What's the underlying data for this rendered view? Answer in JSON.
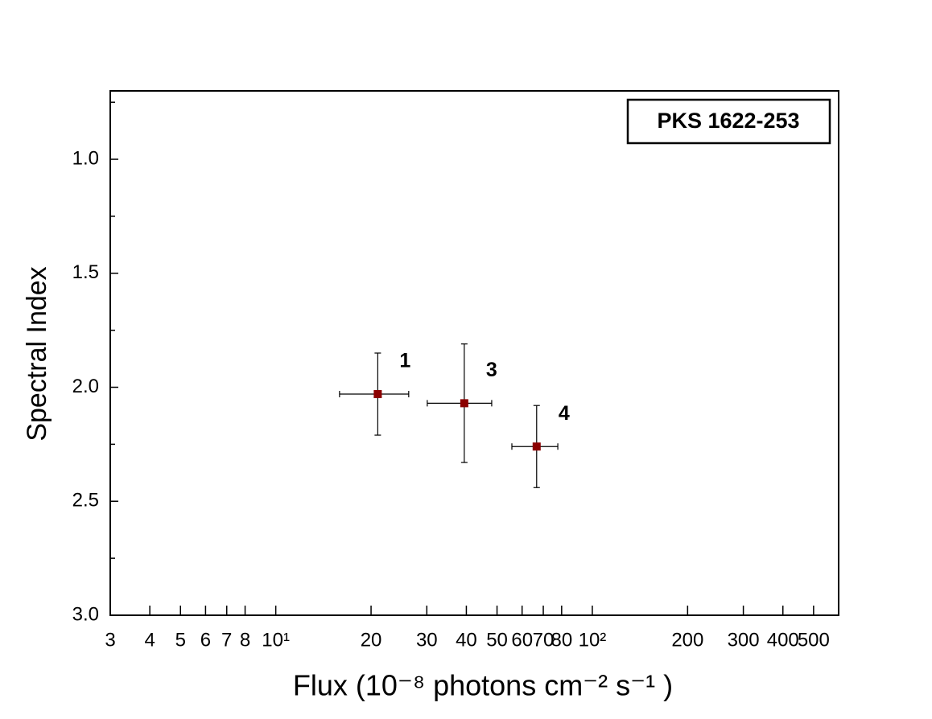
{
  "chart_data": {
    "type": "scatter",
    "xlabel": "Flux  (10⁻⁸ photons  cm⁻² s⁻¹ )",
    "ylabel": "Spectral Index",
    "legend_text": "PKS 1622-253",
    "x": [
      21.0,
      39.4,
      66.7
    ],
    "values": [
      2.03,
      2.07,
      2.26
    ],
    "yerr": [
      0.18,
      0.26,
      0.18
    ],
    "xerr_minus": [
      5.1,
      9.3,
      11.0
    ],
    "xerr_plus": [
      5.3,
      8.7,
      11.1
    ],
    "point_labels": [
      "1",
      "3",
      "4"
    ],
    "color": "#8b0000",
    "xscale": "log",
    "xlim": [
      3,
      600
    ],
    "xticks": [
      3,
      4,
      5,
      6,
      7,
      8,
      {
        "value": 10,
        "label": "10¹"
      },
      20,
      30,
      40,
      50,
      60,
      70,
      80,
      {
        "value": 100,
        "label": "10²"
      },
      200,
      300,
      400,
      500
    ],
    "ylim": [
      0.7,
      3.0
    ],
    "y_inverted": true,
    "yticks": [
      {
        "value": 1,
        "label": "1.0"
      },
      1.5,
      {
        "value": 2,
        "label": "2.0"
      },
      2.5,
      {
        "value": 3,
        "label": "3.0"
      }
    ],
    "yminorticks": [
      0.75,
      1.25,
      1.75,
      2.25,
      2.75
    ]
  }
}
